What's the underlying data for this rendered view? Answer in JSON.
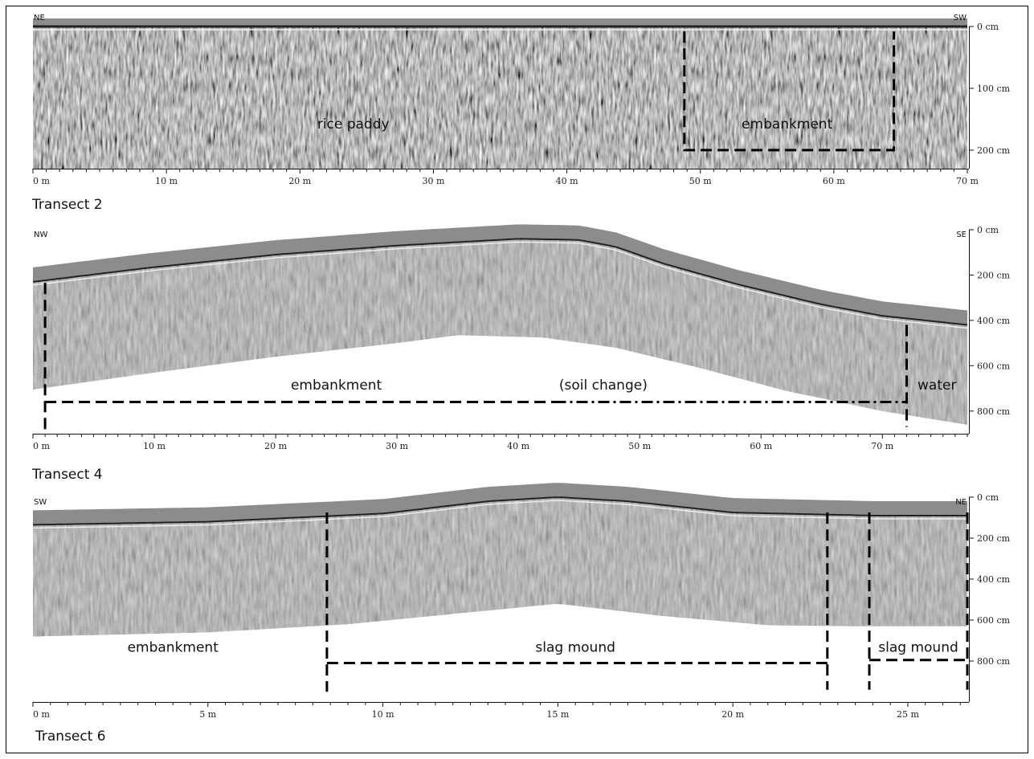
{
  "chart_data": [
    {
      "type": "heatmap",
      "title": "Transect 2",
      "corner_left": "NE",
      "corner_right": "SW",
      "x": {
        "min": 0,
        "max": 70,
        "step": 1,
        "labeled_ticks": [
          0,
          10,
          20,
          30,
          40,
          50,
          60,
          70
        ],
        "unit": " m"
      },
      "depth": {
        "min": 0,
        "max": 230,
        "labeled_ticks": [
          0,
          100,
          200
        ],
        "unit": " cm"
      },
      "surface_depth": [
        [
          0,
          0
        ],
        [
          70,
          0
        ]
      ],
      "data_bottom": [
        [
          0,
          230
        ],
        [
          70,
          230
        ]
      ],
      "annotations": [
        {
          "text": "rice paddy",
          "x": 24,
          "depth": 165
        },
        {
          "text": "embankment",
          "x": 56.5,
          "depth": 165
        }
      ],
      "boundaries": [
        {
          "style": "dashed",
          "points": [
            [
              48.8,
              8
            ],
            [
              48.8,
              200
            ],
            [
              64.5,
              200
            ],
            [
              64.5,
              8
            ]
          ]
        }
      ]
    },
    {
      "type": "heatmap",
      "title": "Transect 4",
      "corner_left": "NW",
      "corner_right": "SE",
      "x": {
        "min": 0,
        "max": 77,
        "step": 1,
        "labeled_ticks": [
          0,
          10,
          20,
          30,
          40,
          50,
          60,
          70
        ],
        "unit": " m"
      },
      "depth": {
        "min": 0,
        "max": 900,
        "labeled_ticks": [
          0,
          200,
          400,
          600,
          800
        ],
        "unit": " cm"
      },
      "surface_depth": [
        [
          0,
          230
        ],
        [
          10,
          165
        ],
        [
          20,
          110
        ],
        [
          30,
          70
        ],
        [
          40,
          40
        ],
        [
          45,
          45
        ],
        [
          48,
          75
        ],
        [
          52,
          150
        ],
        [
          58,
          240
        ],
        [
          65,
          330
        ],
        [
          70,
          380
        ],
        [
          77,
          420
        ]
      ],
      "data_bottom": [
        [
          0,
          705
        ],
        [
          10,
          630
        ],
        [
          20,
          560
        ],
        [
          30,
          500
        ],
        [
          35,
          465
        ],
        [
          42,
          475
        ],
        [
          48,
          520
        ],
        [
          55,
          610
        ],
        [
          62,
          710
        ],
        [
          70,
          800
        ],
        [
          77,
          860
        ]
      ],
      "annotations": [
        {
          "text": "embankment",
          "x": 25,
          "depth": 705
        },
        {
          "text": "(soil change)",
          "x": 47,
          "depth": 705
        },
        {
          "text": "water",
          "x": 74.5,
          "depth": 705
        }
      ],
      "boundaries": [
        {
          "style": "dashed",
          "points": [
            [
              1,
              235
            ],
            [
              1,
              885
            ]
          ]
        },
        {
          "style": "dashed",
          "points": [
            [
              1,
              760
            ],
            [
              43,
              760
            ]
          ]
        },
        {
          "style": "dash-dot",
          "points": [
            [
              43,
              760
            ],
            [
              72,
              760
            ]
          ]
        },
        {
          "style": "dashed",
          "points": [
            [
              72,
              420
            ],
            [
              72,
              870
            ]
          ]
        }
      ]
    },
    {
      "type": "heatmap",
      "title": "Transect 6",
      "corner_left": "SW",
      "corner_right": "NE",
      "x": {
        "min": 0,
        "max": 26.7,
        "step": 0.5,
        "labeled_ticks": [
          0,
          5,
          10,
          15,
          20,
          25
        ],
        "unit": " m"
      },
      "depth": {
        "min": 0,
        "max": 1000,
        "labeled_ticks": [
          0,
          200,
          400,
          600,
          800
        ],
        "unit": " cm"
      },
      "surface_depth": [
        [
          0,
          135
        ],
        [
          5,
          120
        ],
        [
          10,
          80
        ],
        [
          13,
          20
        ],
        [
          15,
          0
        ],
        [
          17,
          20
        ],
        [
          20,
          75
        ],
        [
          24,
          90
        ],
        [
          26.7,
          90
        ]
      ],
      "data_bottom": [
        [
          0,
          680
        ],
        [
          5,
          660
        ],
        [
          9,
          620
        ],
        [
          12,
          570
        ],
        [
          15,
          520
        ],
        [
          18,
          580
        ],
        [
          21,
          625
        ],
        [
          23.5,
          630
        ],
        [
          26.7,
          630
        ]
      ],
      "annotations": [
        {
          "text": "embankment",
          "x": 4,
          "depth": 755
        },
        {
          "text": "slag mound",
          "x": 15.5,
          "depth": 755
        },
        {
          "text": "slag mound",
          "x": 25.3,
          "depth": 755
        }
      ],
      "boundaries": [
        {
          "style": "dashed",
          "points": [
            [
              8.4,
              75
            ],
            [
              8.4,
              950
            ]
          ]
        },
        {
          "style": "dashed",
          "points": [
            [
              8.4,
              810
            ],
            [
              22.7,
              810
            ]
          ]
        },
        {
          "style": "dashed",
          "points": [
            [
              22.7,
              75
            ],
            [
              22.7,
              940
            ]
          ]
        },
        {
          "style": "dashed",
          "points": [
            [
              23.9,
              75
            ],
            [
              23.9,
              940
            ]
          ]
        },
        {
          "style": "dashed",
          "points": [
            [
              23.9,
              795
            ],
            [
              26.7,
              795
            ]
          ]
        },
        {
          "style": "dashed",
          "points": [
            [
              26.7,
              75
            ],
            [
              26.7,
              940
            ]
          ]
        }
      ]
    }
  ]
}
